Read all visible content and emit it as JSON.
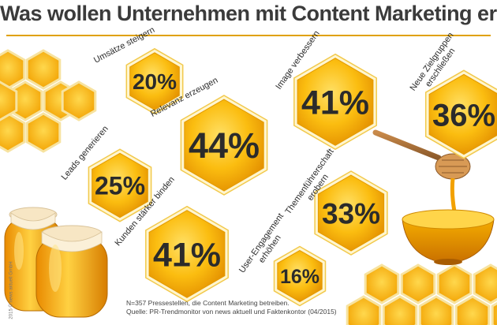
{
  "title": "Was wollen Unternehmen mit Content Marketing erreichen?",
  "chart_data": {
    "type": "bubble",
    "title": "Was wollen Unternehmen mit Content Marketing erreichen?",
    "unit": "%",
    "categories": [
      "Umsätze steigern",
      "Relevanz erzeugen",
      "Image verbessern",
      "Neue Zielgruppen erschließen",
      "Leads generieren",
      "Kunden stärker binden",
      "Themenführerschaft erobern",
      "User-Engagement erhöhen"
    ],
    "values": [
      20,
      44,
      41,
      36,
      25,
      41,
      33,
      16
    ],
    "labels": [
      [
        "Umsätze steigern"
      ],
      [
        "Relevanz erzeugen"
      ],
      [
        "Image verbessern"
      ],
      [
        "Neue Zielgruppen",
        "erschließen"
      ],
      [
        "Leads generieren"
      ],
      [
        "Kunden stärker binden"
      ],
      [
        "Themenführerschaft",
        "erobern"
      ],
      [
        "User-Engagement",
        "erhöhen"
      ]
    ],
    "colors": {
      "honey": "#f5a800",
      "honey_light": "#ffd24a",
      "comb_edge": "#f0d27a",
      "text": "#2b2b2b"
    }
  },
  "footer": {
    "line1": "N=357 Pressestellen, die Content Marketing betreiben.",
    "line2": "Quelle: PR-Trendmonitor von news aktuell und Faktenkontor (04/2015)"
  },
  "copyright": "2015 © news aktuell GmbH"
}
